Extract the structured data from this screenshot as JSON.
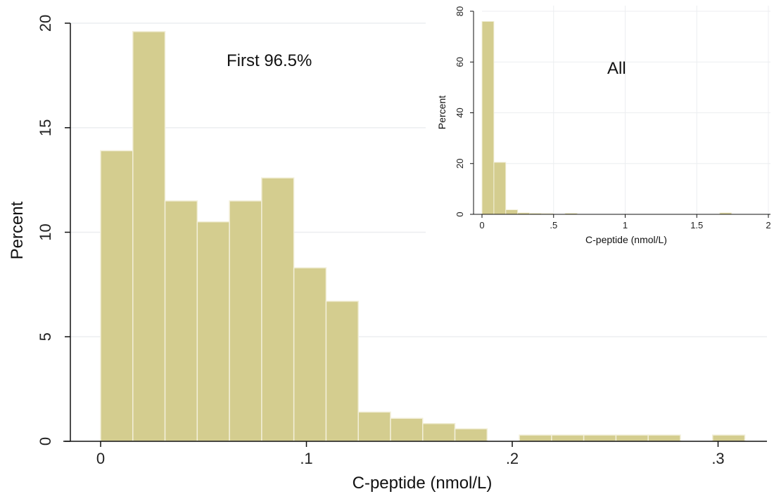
{
  "chart_data": [
    {
      "type": "bar",
      "bar_style": "histogram",
      "annotation": "First 96.5%",
      "xlabel": "C-peptide (nmol/L)",
      "ylabel": "Percent",
      "xlim": [
        0,
        0.32
      ],
      "ylim": [
        0,
        20
      ],
      "bin_width": 0.01565,
      "bin_starts": [
        0,
        0.01565,
        0.0313,
        0.04695,
        0.0626,
        0.07825,
        0.0939,
        0.10955,
        0.1252,
        0.14085,
        0.1565,
        0.17215,
        0.1878,
        0.20345,
        0.2191,
        0.23475,
        0.2504,
        0.26605,
        0.2817,
        0.29735,
        0.313
      ],
      "values": [
        13.9,
        19.6,
        11.5,
        10.5,
        11.5,
        12.6,
        8.3,
        6.7,
        1.4,
        1.1,
        0.85,
        0.6,
        0,
        0.3,
        0.3,
        0.3,
        0.3,
        0.3,
        0,
        0.3,
        0
      ],
      "x_ticks": [
        0,
        0.1,
        0.2,
        0.3
      ],
      "x_tick_labels": [
        "0",
        ".1",
        ".2",
        ".3"
      ],
      "y_ticks": [
        0,
        5,
        10,
        15,
        20
      ],
      "y_tick_labels": [
        "0",
        "5",
        "10",
        "15",
        "20"
      ],
      "grid": true,
      "bar_color": "#d4cd8f",
      "bar_edge_color": "#f2efd9"
    },
    {
      "type": "bar",
      "bar_style": "histogram",
      "annotation": "All",
      "xlabel": "C-peptide (nmol/L)",
      "ylabel": "Percent",
      "xlim": [
        0,
        2
      ],
      "ylim": [
        0,
        80
      ],
      "bin_width": 0.083,
      "bin_starts": [
        0,
        0.083,
        0.166,
        0.249,
        0.332,
        0.415,
        0.498,
        0.581,
        0.664,
        0.747,
        0.83,
        0.913,
        0.996,
        1.079,
        1.162,
        1.245,
        1.328,
        1.411,
        1.494,
        1.577,
        1.66,
        1.743,
        1.826,
        1.909
      ],
      "values": [
        76,
        20.5,
        1.8,
        0.6,
        0.4,
        0.3,
        0,
        0.4,
        0,
        0,
        0,
        0,
        0,
        0,
        0,
        0,
        0,
        0,
        0,
        0,
        0.6,
        0,
        0,
        0
      ],
      "x_ticks": [
        0,
        0.5,
        1,
        1.5,
        2
      ],
      "x_tick_labels": [
        "0",
        ".5",
        "1",
        "1.5",
        "2"
      ],
      "y_ticks": [
        0,
        20,
        40,
        60,
        80
      ],
      "y_tick_labels": [
        "0",
        "20",
        "40",
        "60",
        "80"
      ],
      "grid": true,
      "bar_color": "#d4cd8f",
      "bar_edge_color": "#f2efd9"
    }
  ]
}
